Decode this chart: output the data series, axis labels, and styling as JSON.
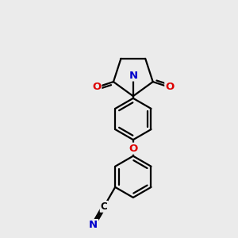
{
  "background_color": "#ebebeb",
  "bond_color": "#000000",
  "n_color": "#0000cc",
  "o_color": "#dd0000",
  "line_width": 1.6,
  "figsize": [
    3.0,
    3.0
  ],
  "dpi": 100,
  "xlim": [
    0,
    10
  ],
  "ylim": [
    0,
    10
  ]
}
